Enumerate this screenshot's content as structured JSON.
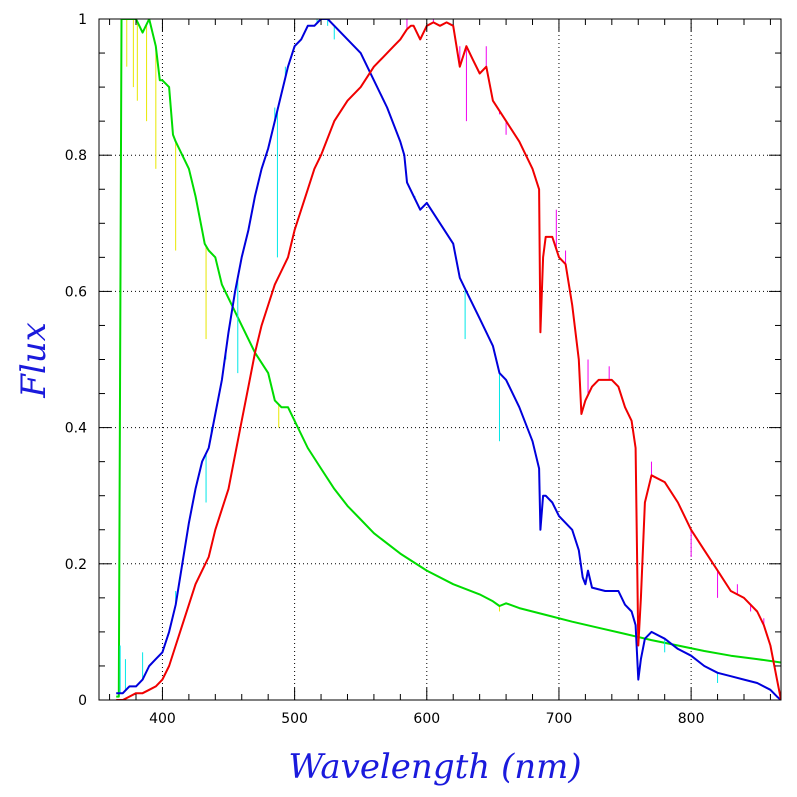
{
  "chart_data": {
    "type": "line",
    "xlabel": "Wavelength (nm)",
    "ylabel": "Flux",
    "xlim": [
      352,
      868
    ],
    "ylim": [
      0,
      1
    ],
    "xticks": [
      400,
      500,
      600,
      700,
      800
    ],
    "xtick_labels": [
      "400",
      "500",
      "600",
      "700",
      "800"
    ],
    "yticks": [
      0,
      0.2,
      0.4,
      0.6,
      0.8,
      1
    ],
    "ytick_labels": [
      "0",
      "0.2",
      "0.4",
      "0.6",
      "0.8",
      "1"
    ],
    "grid": true,
    "series": [
      {
        "color": "#00dc00",
        "noise_color": "#e8e800",
        "x": [
          365,
          367,
          369,
          371,
          375,
          380,
          385,
          390,
          395,
          398,
          400,
          405,
          408,
          410,
          415,
          420,
          425,
          430,
          432,
          435,
          440,
          445,
          450,
          460,
          470,
          480,
          485,
          490,
          495,
          500,
          510,
          520,
          530,
          540,
          550,
          560,
          580,
          600,
          620,
          640,
          650,
          655,
          660,
          670,
          690,
          710,
          730,
          750,
          770,
          790,
          810,
          830,
          850,
          868
        ],
        "y": [
          0.005,
          0.005,
          1.0,
          1.0,
          1.0,
          1.0,
          0.98,
          1.0,
          0.96,
          0.91,
          0.91,
          0.9,
          0.83,
          0.82,
          0.8,
          0.78,
          0.74,
          0.69,
          0.67,
          0.66,
          0.65,
          0.61,
          0.59,
          0.55,
          0.51,
          0.48,
          0.44,
          0.43,
          0.43,
          0.41,
          0.37,
          0.34,
          0.31,
          0.285,
          0.265,
          0.245,
          0.215,
          0.19,
          0.17,
          0.155,
          0.145,
          0.138,
          0.142,
          0.135,
          0.125,
          0.115,
          0.106,
          0.097,
          0.088,
          0.08,
          0.072,
          0.065,
          0.06,
          0.055
        ],
        "noise": [
          [
            373,
            0.93
          ],
          [
            378,
            0.9
          ],
          [
            381,
            0.88
          ],
          [
            388,
            0.85
          ],
          [
            395,
            0.78
          ],
          [
            410,
            0.66
          ],
          [
            433,
            0.53
          ],
          [
            488,
            0.4
          ],
          [
            655,
            0.13
          ]
        ]
      },
      {
        "color": "#0000dc",
        "noise_color": "#00e8e8",
        "x": [
          365,
          370,
          375,
          380,
          385,
          390,
          395,
          400,
          405,
          410,
          415,
          420,
          425,
          430,
          435,
          440,
          445,
          450,
          455,
          460,
          465,
          470,
          475,
          480,
          485,
          490,
          495,
          500,
          505,
          510,
          515,
          520,
          525,
          530,
          540,
          550,
          560,
          570,
          580,
          583,
          585,
          590,
          595,
          600,
          610,
          620,
          625,
          630,
          640,
          650,
          655,
          660,
          670,
          680,
          685,
          686,
          688,
          690,
          695,
          700,
          710,
          715,
          718,
          720,
          722,
          725,
          735,
          745,
          750,
          755,
          758,
          760,
          762,
          765,
          770,
          780,
          790,
          800,
          810,
          820,
          830,
          840,
          850,
          860,
          865,
          868
        ],
        "y": [
          0.01,
          0.01,
          0.02,
          0.02,
          0.03,
          0.05,
          0.06,
          0.07,
          0.1,
          0.14,
          0.2,
          0.26,
          0.31,
          0.35,
          0.37,
          0.42,
          0.47,
          0.54,
          0.6,
          0.65,
          0.69,
          0.74,
          0.78,
          0.81,
          0.85,
          0.89,
          0.93,
          0.96,
          0.97,
          0.99,
          0.99,
          1.0,
          1.0,
          0.99,
          0.97,
          0.95,
          0.91,
          0.87,
          0.82,
          0.8,
          0.76,
          0.74,
          0.72,
          0.73,
          0.7,
          0.67,
          0.62,
          0.6,
          0.56,
          0.52,
          0.48,
          0.47,
          0.43,
          0.38,
          0.34,
          0.25,
          0.3,
          0.3,
          0.29,
          0.27,
          0.25,
          0.22,
          0.18,
          0.17,
          0.19,
          0.165,
          0.16,
          0.16,
          0.14,
          0.13,
          0.11,
          0.03,
          0.06,
          0.09,
          0.1,
          0.09,
          0.075,
          0.065,
          0.05,
          0.04,
          0.035,
          0.03,
          0.025,
          0.015,
          0.005,
          0.0
        ],
        "noise": [
          [
            368,
            0.08
          ],
          [
            372,
            0.06
          ],
          [
            385,
            0.07
          ],
          [
            410,
            0.16
          ],
          [
            433,
            0.29
          ],
          [
            437,
            0.4
          ],
          [
            448,
            0.5
          ],
          [
            457,
            0.48
          ],
          [
            485,
            0.87
          ],
          [
            487,
            0.65
          ],
          [
            493,
            0.93
          ],
          [
            517,
            1.0
          ],
          [
            525,
            0.99
          ],
          [
            530,
            0.97
          ],
          [
            591,
            0.74
          ],
          [
            629,
            0.53
          ],
          [
            655,
            0.38
          ],
          [
            660,
            0.47
          ],
          [
            780,
            0.07
          ],
          [
            820,
            0.025
          ]
        ]
      },
      {
        "color": "#f00000",
        "noise_color": "#f000f0",
        "x": [
          365,
          370,
          375,
          380,
          385,
          390,
          395,
          400,
          405,
          410,
          415,
          420,
          425,
          430,
          435,
          440,
          445,
          450,
          455,
          460,
          465,
          470,
          475,
          480,
          485,
          490,
          495,
          500,
          505,
          510,
          515,
          520,
          530,
          540,
          550,
          560,
          570,
          575,
          580,
          585,
          588,
          590,
          595,
          600,
          605,
          610,
          615,
          620,
          625,
          630,
          635,
          640,
          645,
          650,
          660,
          670,
          680,
          685,
          686,
          688,
          690,
          695,
          700,
          705,
          710,
          715,
          717,
          720,
          725,
          730,
          740,
          745,
          750,
          755,
          758,
          760,
          762,
          765,
          770,
          780,
          790,
          800,
          810,
          820,
          830,
          840,
          850,
          855,
          860,
          865,
          868
        ],
        "y": [
          0.0,
          0.0,
          0.005,
          0.01,
          0.01,
          0.015,
          0.02,
          0.03,
          0.05,
          0.08,
          0.11,
          0.14,
          0.17,
          0.19,
          0.21,
          0.25,
          0.28,
          0.31,
          0.36,
          0.41,
          0.46,
          0.51,
          0.55,
          0.58,
          0.61,
          0.63,
          0.65,
          0.69,
          0.72,
          0.75,
          0.78,
          0.8,
          0.85,
          0.88,
          0.9,
          0.93,
          0.95,
          0.96,
          0.97,
          0.985,
          0.99,
          0.99,
          0.97,
          0.99,
          0.995,
          0.99,
          0.995,
          0.99,
          0.93,
          0.96,
          0.94,
          0.92,
          0.93,
          0.88,
          0.85,
          0.82,
          0.78,
          0.75,
          0.54,
          0.65,
          0.68,
          0.68,
          0.65,
          0.64,
          0.58,
          0.5,
          0.42,
          0.44,
          0.46,
          0.47,
          0.47,
          0.46,
          0.43,
          0.41,
          0.37,
          0.08,
          0.15,
          0.29,
          0.33,
          0.32,
          0.29,
          0.25,
          0.22,
          0.19,
          0.16,
          0.15,
          0.13,
          0.11,
          0.08,
          0.03,
          0.0
        ],
        "noise": [
          [
            585,
            1.0
          ],
          [
            605,
            1.0
          ],
          [
            625,
            0.96
          ],
          [
            630,
            0.85
          ],
          [
            645,
            0.96
          ],
          [
            655,
            0.86
          ],
          [
            660,
            0.83
          ],
          [
            698,
            0.72
          ],
          [
            705,
            0.66
          ],
          [
            722,
            0.5
          ],
          [
            738,
            0.49
          ],
          [
            770,
            0.35
          ],
          [
            780,
            0.32
          ],
          [
            800,
            0.21
          ],
          [
            820,
            0.15
          ],
          [
            835,
            0.17
          ],
          [
            845,
            0.13
          ],
          [
            855,
            0.12
          ]
        ]
      }
    ]
  }
}
